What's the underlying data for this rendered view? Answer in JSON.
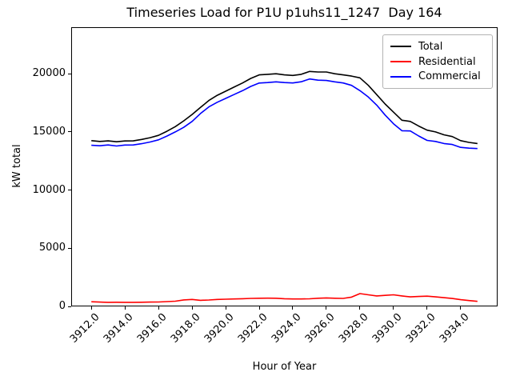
{
  "chart_data": {
    "type": "line",
    "title": "Timeseries Load for P1U p1uhs11_1247  Day 164",
    "xlabel": "Hour of Year",
    "ylabel": "kW total",
    "grid": false,
    "xlim": [
      3910.8,
      3936.2
    ],
    "ylim": [
      0,
      24000
    ],
    "xticks": {
      "values": [
        3912,
        3914,
        3916,
        3918,
        3920,
        3922,
        3924,
        3926,
        3928,
        3930,
        3932,
        3934
      ],
      "labels": [
        "3912.0",
        "3914.0",
        "3916.0",
        "3918.0",
        "3920.0",
        "3922.0",
        "3924.0",
        "3926.0",
        "3928.0",
        "3930.0",
        "3932.0",
        "3934.0"
      ]
    },
    "yticks": {
      "values": [
        0,
        5000,
        10000,
        15000,
        20000
      ],
      "labels": [
        "0",
        "5000",
        "10000",
        "15000",
        "20000"
      ]
    },
    "legend": {
      "position": "upper right"
    },
    "x": [
      3912,
      3912.5,
      3913,
      3913.5,
      3914,
      3914.5,
      3915,
      3915.5,
      3916,
      3916.5,
      3917,
      3917.5,
      3918,
      3918.5,
      3919,
      3919.5,
      3920,
      3920.5,
      3921,
      3921.5,
      3922,
      3922.5,
      3923,
      3923.5,
      3924,
      3924.5,
      3925,
      3925.5,
      3926,
      3926.5,
      3927,
      3927.5,
      3928,
      3928.5,
      3929,
      3929.5,
      3930,
      3930.5,
      3931,
      3931.5,
      3932,
      3932.5,
      3933,
      3933.5,
      3934,
      3934.5,
      3935
    ],
    "series": [
      {
        "name": "Total",
        "color": "#000000",
        "values": [
          14250,
          14180,
          14230,
          14150,
          14220,
          14230,
          14350,
          14500,
          14700,
          15050,
          15450,
          15950,
          16500,
          17100,
          17700,
          18150,
          18500,
          18850,
          19200,
          19600,
          19900,
          19950,
          20000,
          19900,
          19850,
          19950,
          20200,
          20150,
          20150,
          20000,
          19900,
          19800,
          19650,
          19000,
          18200,
          17400,
          16700,
          16000,
          15900,
          15500,
          15150,
          15000,
          14750,
          14600,
          14250,
          14100,
          14000
        ]
      },
      {
        "name": "Residential",
        "color": "#ff0000",
        "values": [
          400,
          370,
          350,
          360,
          350,
          350,
          360,
          370,
          380,
          410,
          450,
          560,
          600,
          520,
          550,
          600,
          620,
          640,
          660,
          690,
          700,
          710,
          700,
          660,
          640,
          640,
          650,
          700,
          730,
          700,
          690,
          800,
          1100,
          1000,
          900,
          950,
          1000,
          900,
          820,
          850,
          880,
          820,
          750,
          680,
          580,
          500,
          430
        ]
      },
      {
        "name": "Commercial",
        "color": "#0000ff",
        "values": [
          13850,
          13810,
          13880,
          13790,
          13870,
          13880,
          13990,
          14130,
          14320,
          14640,
          15000,
          15390,
          15900,
          16580,
          17150,
          17550,
          17880,
          18210,
          18540,
          18910,
          19200,
          19240,
          19300,
          19240,
          19210,
          19310,
          19550,
          19450,
          19420,
          19300,
          19210,
          19000,
          18550,
          18000,
          17300,
          16450,
          15700,
          15100,
          15080,
          14650,
          14270,
          14180,
          14000,
          13920,
          13670,
          13600,
          13570
        ]
      }
    ]
  }
}
